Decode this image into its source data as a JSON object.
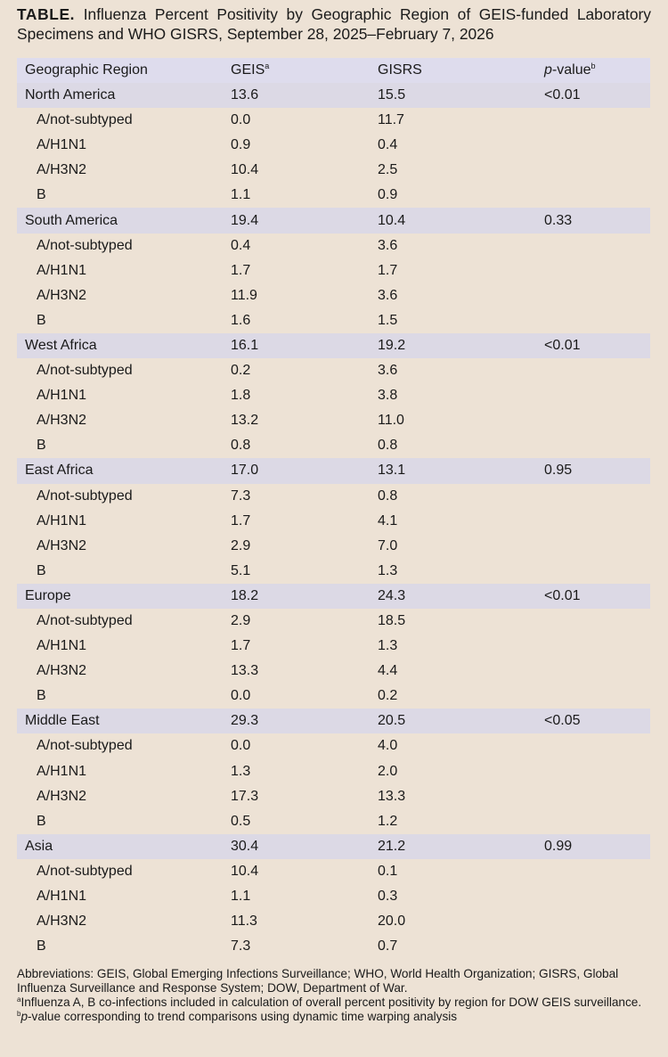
{
  "title": {
    "label": "TABLE.",
    "text": "Influenza Percent Positivity by Geographic Region of GEIS-funded Laboratory Specimens and WHO GISRS, September 28, 2025–February 7, 2026"
  },
  "table": {
    "headers": {
      "region": "Geographic Region",
      "geis": "GEIS",
      "geis_sup": "a",
      "gisrs": "GISRS",
      "pvalue_italic": "p",
      "pvalue_rest": "-value",
      "pvalue_sup": "b"
    },
    "regions": [
      {
        "name": "North America",
        "geis": "13.6",
        "gisrs": "15.5",
        "p": "<0.01",
        "subtypes": [
          {
            "name": "A/not-subtyped",
            "geis": "0.0",
            "gisrs": "11.7"
          },
          {
            "name": "A/H1N1",
            "geis": "0.9",
            "gisrs": "0.4"
          },
          {
            "name": "A/H3N2",
            "geis": "10.4",
            "gisrs": "2.5"
          },
          {
            "name": "B",
            "geis": "1.1",
            "gisrs": "0.9"
          }
        ]
      },
      {
        "name": "South America",
        "geis": "19.4",
        "gisrs": "10.4",
        "p": "0.33",
        "subtypes": [
          {
            "name": "A/not-subtyped",
            "geis": "0.4",
            "gisrs": "3.6"
          },
          {
            "name": "A/H1N1",
            "geis": "1.7",
            "gisrs": "1.7"
          },
          {
            "name": "A/H3N2",
            "geis": "11.9",
            "gisrs": "3.6"
          },
          {
            "name": "B",
            "geis": "1.6",
            "gisrs": "1.5"
          }
        ]
      },
      {
        "name": "West Africa",
        "geis": "16.1",
        "gisrs": "19.2",
        "p": "<0.01",
        "subtypes": [
          {
            "name": "A/not-subtyped",
            "geis": "0.2",
            "gisrs": "3.6"
          },
          {
            "name": "A/H1N1",
            "geis": "1.8",
            "gisrs": "3.8"
          },
          {
            "name": "A/H3N2",
            "geis": "13.2",
            "gisrs": "11.0"
          },
          {
            "name": "B",
            "geis": "0.8",
            "gisrs": "0.8"
          }
        ]
      },
      {
        "name": "East Africa",
        "geis": "17.0",
        "gisrs": "13.1",
        "p": "0.95",
        "subtypes": [
          {
            "name": "A/not-subtyped",
            "geis": "7.3",
            "gisrs": "0.8"
          },
          {
            "name": "A/H1N1",
            "geis": "1.7",
            "gisrs": "4.1"
          },
          {
            "name": "A/H3N2",
            "geis": "2.9",
            "gisrs": "7.0"
          },
          {
            "name": "B",
            "geis": "5.1",
            "gisrs": "1.3"
          }
        ]
      },
      {
        "name": "Europe",
        "geis": "18.2",
        "gisrs": "24.3",
        "p": "<0.01",
        "subtypes": [
          {
            "name": "A/not-subtyped",
            "geis": "2.9",
            "gisrs": "18.5"
          },
          {
            "name": "A/H1N1",
            "geis": "1.7",
            "gisrs": "1.3"
          },
          {
            "name": "A/H3N2",
            "geis": "13.3",
            "gisrs": "4.4"
          },
          {
            "name": "B",
            "geis": "0.0",
            "gisrs": "0.2"
          }
        ]
      },
      {
        "name": "Middle East",
        "geis": "29.3",
        "gisrs": "20.5",
        "p": "<0.05",
        "subtypes": [
          {
            "name": "A/not-subtyped",
            "geis": "0.0",
            "gisrs": "4.0"
          },
          {
            "name": "A/H1N1",
            "geis": "1.3",
            "gisrs": "2.0"
          },
          {
            "name": "A/H3N2",
            "geis": "17.3",
            "gisrs": "13.3"
          },
          {
            "name": "B",
            "geis": "0.5",
            "gisrs": "1.2"
          }
        ]
      },
      {
        "name": "Asia",
        "geis": "30.4",
        "gisrs": "21.2",
        "p": "0.99",
        "subtypes": [
          {
            "name": "A/not-subtyped",
            "geis": "10.4",
            "gisrs": "0.1"
          },
          {
            "name": "A/H1N1",
            "geis": "1.1",
            "gisrs": "0.3"
          },
          {
            "name": "A/H3N2",
            "geis": "11.3",
            "gisrs": "20.0"
          },
          {
            "name": "B",
            "geis": "7.3",
            "gisrs": "0.7"
          }
        ]
      }
    ]
  },
  "footnotes": {
    "abbreviations": "Abbreviations: GEIS, Global Emerging Infections Surveillance; WHO, World Health Organization; GISRS, Global Influenza Surveillance and Response System; DOW, Department of War.",
    "a_mark": "a",
    "a_text": "Influenza A, B co-infections included in calculation of overall percent positivity by region for DOW GEIS surveillance.",
    "b_mark": "b",
    "b_italic": "p",
    "b_text": "-value corresponding to trend comparisons using dynamic time warping analysis"
  }
}
